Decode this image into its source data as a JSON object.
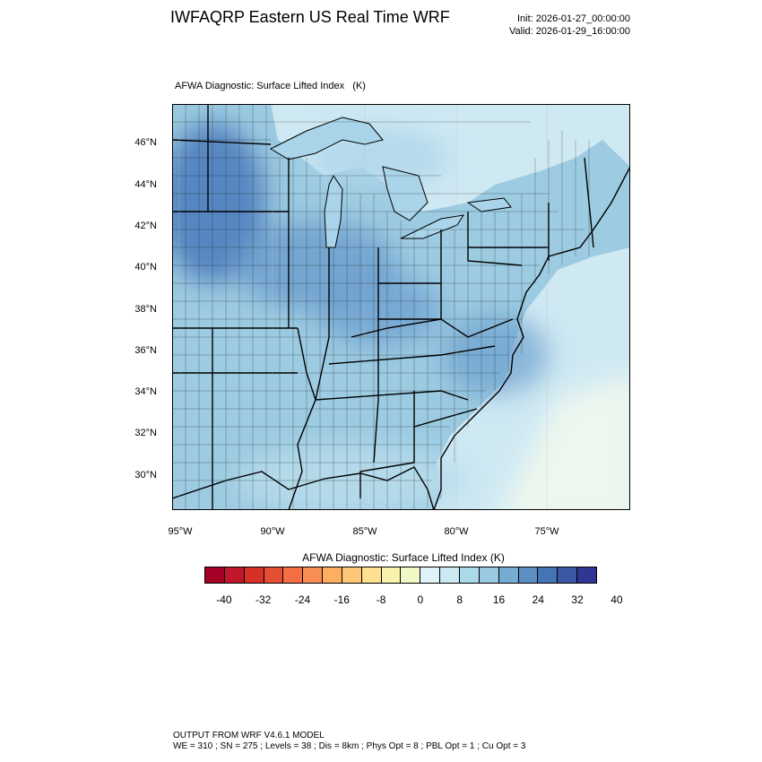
{
  "header": {
    "title": "IWFAQRP Eastern US Real Time WRF",
    "init": "Init: 2026-01-27_00:00:00",
    "valid": "Valid: 2026-01-29_16:00:00"
  },
  "map": {
    "title": "AFWA Diagnostic: Surface Lifted Index   (K)",
    "lat_labels": [
      "46°N",
      "44°N",
      "42°N",
      "40°N",
      "38°N",
      "36°N",
      "34°N",
      "32°N",
      "30°N"
    ],
    "lon_labels": [
      "95°W",
      "90°W",
      "85°W",
      "80°W",
      "75°W"
    ],
    "colors": {
      "water_light": "#d3edf4",
      "land_mid": "#8ec4de",
      "land_strong": "#5b95c8",
      "land_max": "#3f6fb3",
      "offshore": "#ecf7f3",
      "boundary": "#000000"
    }
  },
  "colorbar": {
    "title": "AFWA Diagnostic: Surface Lifted Index  (K)",
    "colors": [
      "#a50026",
      "#c0172b",
      "#d73027",
      "#e44e34",
      "#f46d43",
      "#f88e53",
      "#fdae61",
      "#fec778",
      "#fee090",
      "#f8f2ac",
      "#f0f9c6",
      "#e0f3f8",
      "#cbe9f2",
      "#abd9e9",
      "#99c9e0",
      "#74add1",
      "#5e8fc4",
      "#4575b4",
      "#3a58a4",
      "#313695"
    ],
    "tick_labels": [
      "-40",
      "-32",
      "-24",
      "-16",
      "-8",
      "0",
      "8",
      "16",
      "24",
      "32",
      "40"
    ]
  },
  "footer": {
    "line1": "OUTPUT FROM WRF V4.6.1 MODEL",
    "line2": "WE = 310 ; SN = 275 ; Levels = 38 ; Dis = 8km ; Phys Opt = 8 ; PBL Opt = 1 ; Cu Opt = 3"
  }
}
